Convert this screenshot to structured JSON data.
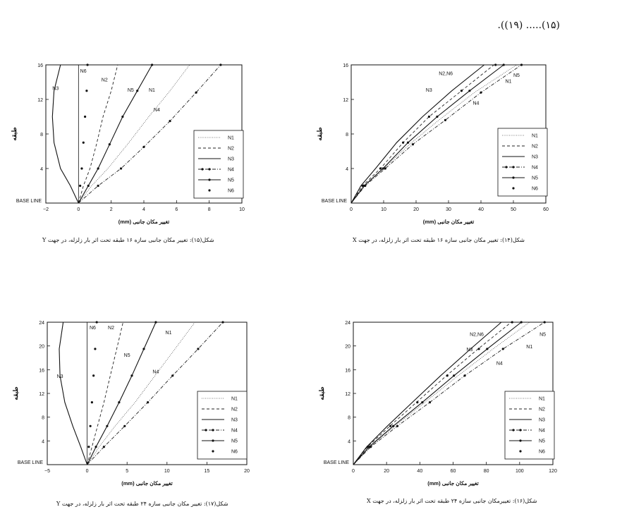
{
  "header_text": "(۱۵)..... (۱۹)).",
  "chart_data": [
    {
      "id": "fig15",
      "type": "line",
      "xlabel": "تغییر مکان جانبی (mm)",
      "ylabel": "طبقه",
      "base_label": "BASE LINE",
      "xlim": [
        -2,
        10
      ],
      "ylim": [
        0,
        16
      ],
      "xticks": [
        -2,
        0,
        2,
        4,
        6,
        8,
        10
      ],
      "yticks": [
        4,
        8,
        12,
        16
      ],
      "caption": "شکل(۱۵): تغییر مکان جانبی سازه ۱۶ طبقه تحت اثر بار زلزله، در جهت Y",
      "series": [
        {
          "name": "N1",
          "x": [
            0,
            0.8,
            1.8,
            3.0,
            4.3,
            5.6,
            6.8
          ],
          "y": [
            0,
            2,
            4,
            6.8,
            10,
            13,
            16
          ]
        },
        {
          "name": "N2",
          "x": [
            0,
            0.3,
            0.7,
            1.1,
            1.5,
            2.0,
            2.4
          ],
          "y": [
            0,
            2,
            4,
            6.8,
            10,
            13,
            16
          ]
        },
        {
          "name": "N3",
          "x": [
            0,
            -0.5,
            -1.1,
            -1.5,
            -1.6,
            -1.5,
            -1.1
          ],
          "y": [
            0,
            2,
            4,
            7,
            10,
            13,
            16
          ]
        },
        {
          "name": "N4",
          "x": [
            0,
            1.2,
            2.6,
            4.0,
            5.6,
            7.2,
            8.7
          ],
          "y": [
            0,
            2,
            4,
            6.5,
            9.5,
            12.8,
            16
          ]
        },
        {
          "name": "N5",
          "x": [
            0,
            0.6,
            1.2,
            1.9,
            2.7,
            3.6,
            4.5
          ],
          "y": [
            0,
            2,
            4,
            6.8,
            10,
            13,
            16
          ]
        },
        {
          "name": "N6",
          "x": [
            0,
            0.1,
            0.2,
            0.3,
            0.4,
            0.5,
            0.55
          ],
          "y": [
            0,
            2,
            4,
            7,
            10,
            13,
            16
          ]
        }
      ],
      "annotations": [
        {
          "text": "N6",
          "x": 0.1,
          "y": 15.1
        },
        {
          "text": "N2",
          "x": 1.4,
          "y": 14.1
        },
        {
          "text": "N3",
          "x": -1.6,
          "y": 13.1
        },
        {
          "text": "N5",
          "x": 3.0,
          "y": 12.9
        },
        {
          "text": "N1",
          "x": 4.3,
          "y": 12.9
        },
        {
          "text": "N4",
          "x": 4.6,
          "y": 10.6
        }
      ]
    },
    {
      "id": "fig14",
      "type": "line",
      "xlabel": "تغییر مکان جانبی (mm)",
      "ylabel": "طبقه",
      "base_label": "BASE LINE",
      "xlim": [
        0,
        60
      ],
      "ylim": [
        0,
        16
      ],
      "xticks": [
        0,
        10,
        20,
        30,
        40,
        50,
        60
      ],
      "yticks": [
        4,
        8,
        12,
        16
      ],
      "caption": "شکل(۱۴): تغییر مکان جانبی سازه ۱۶ طبقه تحت اثر بار زلزله، در جهت X",
      "series": [
        {
          "name": "N1",
          "x": [
            0,
            4,
            10,
            18,
            27,
            38,
            51
          ],
          "y": [
            0,
            2,
            4,
            6.8,
            9.6,
            12.8,
            16
          ]
        },
        {
          "name": "N2",
          "x": [
            0,
            3.5,
            9,
            16,
            24,
            34,
            44
          ],
          "y": [
            0,
            2,
            4,
            7,
            10,
            13,
            16
          ]
        },
        {
          "name": "N3",
          "x": [
            0,
            3,
            7.5,
            14,
            22,
            31,
            41
          ],
          "y": [
            0,
            2,
            4,
            7,
            10,
            13,
            16
          ]
        },
        {
          "name": "N4",
          "x": [
            0,
            4.3,
            10.5,
            19,
            29,
            40,
            52.5
          ],
          "y": [
            0,
            2,
            4,
            6.8,
            9.6,
            12.8,
            16
          ]
        },
        {
          "name": "N5",
          "x": [
            0,
            4,
            9.8,
            17.5,
            26.5,
            36.5,
            47
          ],
          "y": [
            0,
            2,
            4,
            7,
            10,
            13,
            16
          ]
        },
        {
          "name": "N6",
          "x": [
            0,
            3.5,
            9,
            16,
            24,
            34,
            44.5
          ],
          "y": [
            0,
            2,
            4,
            7,
            10,
            13,
            16
          ]
        }
      ],
      "annotations": [
        {
          "text": "N2,N6",
          "x": 27,
          "y": 14.8
        },
        {
          "text": "N5",
          "x": 50,
          "y": 14.6
        },
        {
          "text": "N1",
          "x": 47.5,
          "y": 13.9
        },
        {
          "text": "N3",
          "x": 23,
          "y": 12.9
        },
        {
          "text": "N4",
          "x": 37.5,
          "y": 11.4
        }
      ]
    },
    {
      "id": "fig17",
      "type": "line",
      "xlabel": "تغییر مکان جانبی (mm)",
      "ylabel": "طبقه",
      "base_label": "BASE LINE",
      "xlim": [
        -5,
        20
      ],
      "ylim": [
        0,
        24
      ],
      "xticks": [
        -5,
        0,
        5,
        10,
        15,
        20
      ],
      "yticks": [
        4,
        8,
        12,
        16,
        20,
        24
      ],
      "caption": "شکل(۱۷): تغییر مکان جانبی سازه ۲۴ طبقه تحت اثر بار زلزله، در جهت Y",
      "series": [
        {
          "name": "N1",
          "x": [
            0,
            1.5,
            3.5,
            6,
            8.5,
            11,
            13.5
          ],
          "y": [
            0,
            3,
            6.5,
            10.5,
            15,
            19.5,
            24
          ]
        },
        {
          "name": "N2",
          "x": [
            0,
            0.6,
            1.3,
            2.1,
            2.9,
            3.7,
            4.5
          ],
          "y": [
            0,
            3,
            6.5,
            10.5,
            15,
            19.5,
            24
          ]
        },
        {
          "name": "N3",
          "x": [
            0,
            -0.8,
            -1.8,
            -2.8,
            -3.4,
            -3.5,
            -3.0
          ],
          "y": [
            0,
            3,
            6.5,
            10.5,
            15,
            19.5,
            24
          ]
        },
        {
          "name": "N4",
          "x": [
            0,
            2.1,
            4.7,
            7.6,
            10.7,
            13.9,
            17
          ],
          "y": [
            0,
            3,
            6.5,
            10.5,
            15,
            19.5,
            24
          ]
        },
        {
          "name": "N5",
          "x": [
            0,
            1.1,
            2.5,
            4.0,
            5.6,
            7.1,
            8.6
          ],
          "y": [
            0,
            3,
            6.5,
            10.5,
            15,
            19.5,
            24
          ]
        },
        {
          "name": "N6",
          "x": [
            0,
            0.2,
            0.4,
            0.6,
            0.8,
            1.0,
            1.2
          ],
          "y": [
            0,
            3,
            6.5,
            10.5,
            15,
            19.5,
            24
          ]
        }
      ],
      "annotations": [
        {
          "text": "N6",
          "x": 0.3,
          "y": 22.8
        },
        {
          "text": "N2",
          "x": 2.6,
          "y": 22.8
        },
        {
          "text": "N1",
          "x": 9.8,
          "y": 22.0
        },
        {
          "text": "N5",
          "x": 4.6,
          "y": 18.2
        },
        {
          "text": "N4",
          "x": 8.2,
          "y": 15.4
        },
        {
          "text": "N3",
          "x": -3.8,
          "y": 14.6
        }
      ]
    },
    {
      "id": "fig16",
      "type": "line",
      "xlabel": "تغییر مکان جانبی (mm)",
      "ylabel": "طبقه",
      "base_label": "BASE LINE",
      "xlim": [
        0,
        120
      ],
      "ylim": [
        0,
        24
      ],
      "xticks": [
        0,
        20,
        40,
        60,
        80,
        100,
        120
      ],
      "yticks": [
        4,
        8,
        12,
        16,
        20,
        24
      ],
      "caption": "شکل(۱۶): تغییرمکان جانبی سازه ۲۴ طبقه تحت اثر بار زلزله، در جهت X",
      "series": [
        {
          "name": "N1",
          "x": [
            0,
            10,
            25,
            43,
            63,
            84,
            106
          ],
          "y": [
            0,
            3,
            6.5,
            10.5,
            15,
            19.5,
            24
          ]
        },
        {
          "name": "N2",
          "x": [
            0,
            8.5,
            22,
            38,
            56,
            75,
            95
          ],
          "y": [
            0,
            3,
            6.5,
            10.5,
            15,
            19.5,
            24
          ]
        },
        {
          "name": "N3",
          "x": [
            0,
            8,
            20.5,
            35.5,
            52.5,
            70.5,
            89
          ],
          "y": [
            0,
            3,
            6.5,
            10.5,
            15,
            19.5,
            24
          ]
        },
        {
          "name": "N4",
          "x": [
            0,
            10.5,
            26.5,
            46,
            67,
            90,
            115
          ],
          "y": [
            0,
            3,
            6.5,
            10.5,
            15,
            19.5,
            24
          ]
        },
        {
          "name": "N5",
          "x": [
            0,
            9.5,
            24,
            41.5,
            60.5,
            80.5,
            101
          ],
          "y": [
            0,
            3,
            6.5,
            10.5,
            15,
            19.5,
            24
          ]
        },
        {
          "name": "N6",
          "x": [
            0,
            8.7,
            22.3,
            38.5,
            56.5,
            75.5,
            95.5
          ],
          "y": [
            0,
            3,
            6.5,
            10.5,
            15,
            19.5,
            24
          ]
        }
      ],
      "annotations": [
        {
          "text": "N2,N6",
          "x": 70,
          "y": 21.7
        },
        {
          "text": "N5",
          "x": 112,
          "y": 21.7
        },
        {
          "text": "N1",
          "x": 104,
          "y": 19.6
        },
        {
          "text": "N3",
          "x": 68,
          "y": 19.1
        },
        {
          "text": "N4",
          "x": 86,
          "y": 16.8
        }
      ]
    }
  ],
  "legend_styles": {
    "N1": {
      "stroke": "#555555",
      "dash": "1,1.5",
      "width": 0.8,
      "marker": "none"
    },
    "N2": {
      "stroke": "#222222",
      "dash": "4,3",
      "width": 0.9,
      "marker": "none"
    },
    "N3": {
      "stroke": "#111111",
      "dash": "",
      "width": 1.1,
      "marker": "none"
    },
    "N4": {
      "stroke": "#222222",
      "dash": "5,2,1,2",
      "width": 0.9,
      "marker": "dot"
    },
    "N5": {
      "stroke": "#111111",
      "dash": "",
      "width": 1.1,
      "marker": "dot"
    },
    "N6": {
      "stroke": "#111111",
      "dash": "0,6",
      "width": 0,
      "marker": "dot"
    }
  }
}
